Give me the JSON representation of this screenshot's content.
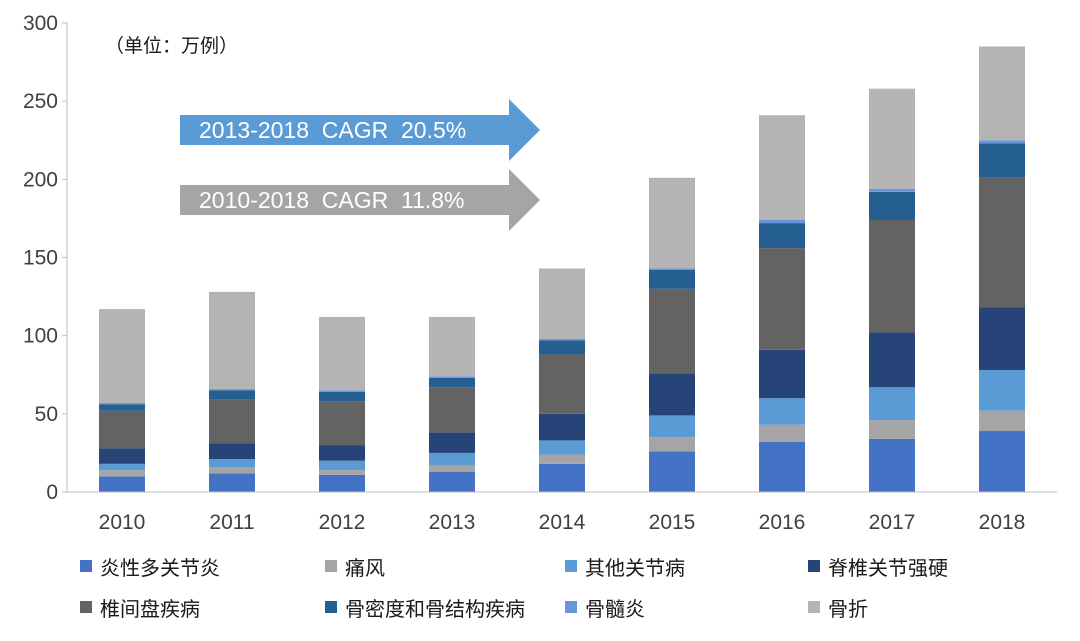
{
  "chart_data": {
    "type": "bar",
    "stacked": true,
    "unit_label": "（单位：万例）",
    "categories": [
      "2010",
      "2011",
      "2012",
      "2013",
      "2014",
      "2015",
      "2016",
      "2017",
      "2018"
    ],
    "ylim": [
      0,
      300
    ],
    "yticks": [
      0,
      50,
      100,
      150,
      200,
      250,
      300
    ],
    "series": [
      {
        "name": "炎性多关节炎",
        "color": "#4472C4",
        "values": [
          10,
          12,
          11,
          13,
          18,
          26,
          32,
          34,
          39
        ]
      },
      {
        "name": "痛风",
        "color": "#A5A5A5",
        "values": [
          4,
          4,
          3,
          4,
          6,
          9,
          11,
          12,
          13
        ]
      },
      {
        "name": "其他关节病",
        "color": "#5B9BD5",
        "values": [
          4,
          5,
          6,
          8,
          9,
          14,
          17,
          21,
          26
        ]
      },
      {
        "name": "脊椎关节强硬",
        "color": "#264478",
        "values": [
          10,
          10,
          10,
          13,
          17,
          27,
          31,
          35,
          40
        ]
      },
      {
        "name": "椎间盘疾病",
        "color": "#636363",
        "values": [
          24,
          28,
          28,
          29,
          38,
          54,
          65,
          72,
          83
        ]
      },
      {
        "name": "骨密度和骨结构疾病",
        "color": "#255E91",
        "values": [
          4,
          6,
          6,
          6,
          9,
          12,
          16,
          18,
          22
        ]
      },
      {
        "name": "骨髓炎",
        "color": "#6A95D8",
        "values": [
          1,
          1,
          1,
          1,
          1,
          1,
          2,
          2,
          2
        ]
      },
      {
        "name": "骨折",
        "color": "#B4B4B4",
        "values": [
          60,
          62,
          47,
          38,
          45,
          58,
          67,
          64,
          60
        ]
      }
    ],
    "annotations": [
      {
        "text": "2013-2018  CAGR  20.5%",
        "color": "#5B9BD5"
      },
      {
        "text": "2010-2018  CAGR  11.8%",
        "color": "#A5A5A5"
      }
    ],
    "legend_position": "bottom",
    "grid": false
  }
}
